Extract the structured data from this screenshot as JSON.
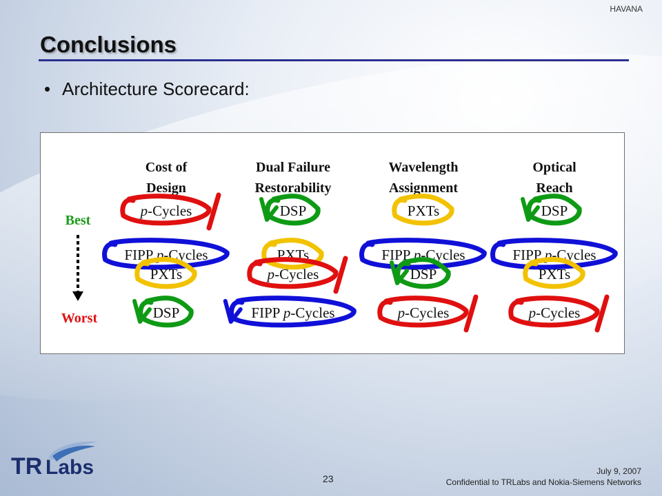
{
  "header": {
    "label": "HAVANA"
  },
  "slide": {
    "title": "Conclusions",
    "bullet": "Architecture Scorecard:"
  },
  "scorecard": {
    "axis": {
      "best": "Best",
      "worst": "Worst"
    },
    "columns": [
      {
        "header_line1": "Cost of",
        "header_line2": "Design",
        "items": [
          {
            "pre": "",
            "italic": "p",
            "post": "-Cycles",
            "color": "#e01010",
            "mark": "cross"
          },
          {
            "pre": "FIPP ",
            "italic": "p",
            "post": "-Cycles",
            "color": "#1010d8",
            "mark": "none"
          },
          {
            "pre": "PXTs",
            "italic": "",
            "post": "",
            "color": "#f2c200",
            "mark": "none"
          },
          {
            "pre": "DSP",
            "italic": "",
            "post": "",
            "color": "#0f9a15",
            "mark": "check"
          }
        ]
      },
      {
        "header_line1": "Dual Failure",
        "header_line2": "Restorability",
        "items": [
          {
            "pre": "DSP",
            "italic": "",
            "post": "",
            "color": "#0f9a15",
            "mark": "check"
          },
          {
            "pre": "PXTs",
            "italic": "",
            "post": "",
            "color": "#f2c200",
            "mark": "none"
          },
          {
            "pre": "",
            "italic": "p",
            "post": "-Cycles",
            "color": "#e01010",
            "mark": "cross"
          },
          {
            "pre": "FIPP ",
            "italic": "p",
            "post": "-Cycles",
            "color": "#1010d8",
            "mark": "check"
          }
        ]
      },
      {
        "header_line1": "Wavelength",
        "header_line2": "Assignment",
        "items": [
          {
            "pre": "PXTs",
            "italic": "",
            "post": "",
            "color": "#f2c200",
            "mark": "none"
          },
          {
            "pre": "FIPP ",
            "italic": "p",
            "post": "-Cycles",
            "color": "#1010d8",
            "mark": "none"
          },
          {
            "pre": "DSP",
            "italic": "",
            "post": "",
            "color": "#0f9a15",
            "mark": "check"
          },
          {
            "pre": "",
            "italic": "p",
            "post": "-Cycles",
            "color": "#e01010",
            "mark": "cross"
          }
        ]
      },
      {
        "header_line1": "Optical",
        "header_line2": "Reach",
        "items": [
          {
            "pre": "DSP",
            "italic": "",
            "post": "",
            "color": "#0f9a15",
            "mark": "check"
          },
          {
            "pre": "FIPP ",
            "italic": "p",
            "post": "-Cycles",
            "color": "#1010d8",
            "mark": "none"
          },
          {
            "pre": "PXTs",
            "italic": "",
            "post": "",
            "color": "#f2c200",
            "mark": "none"
          },
          {
            "pre": "",
            "italic": "p",
            "post": "-Cycles",
            "color": "#e01010",
            "mark": "cross"
          }
        ]
      }
    ]
  },
  "logo": {
    "text_tr": "TR",
    "text_labs": "Labs"
  },
  "footer": {
    "date": "July 9, 2007",
    "confidential": "Confidential to TRLabs and Nokia-Siemens Networks",
    "page": "23"
  }
}
